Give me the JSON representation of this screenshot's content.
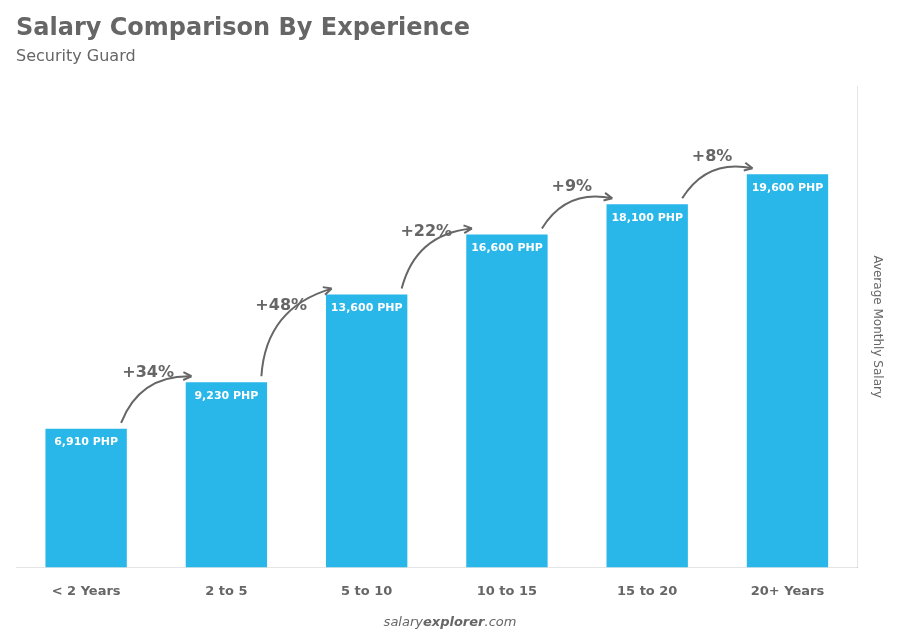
{
  "chart_data": {
    "type": "bar",
    "title": "Salary Comparison By Experience",
    "subtitle": "Security Guard",
    "categories": [
      "< 2 Years",
      "2 to 5",
      "5 to 10",
      "10 to 15",
      "15 to 20",
      "20+ Years"
    ],
    "values": [
      6910,
      9230,
      13600,
      16600,
      18100,
      19600
    ],
    "value_labels": [
      "6,910 PHP",
      "9,230 PHP",
      "13,600 PHP",
      "16,600 PHP",
      "18,100 PHP",
      "19,600 PHP"
    ],
    "data_labels": true,
    "annotations": [
      "+34%",
      "+48%",
      "+22%",
      "+9%",
      "+8%"
    ],
    "watermark": [
      "salary",
      "explorer",
      ".com"
    ],
    "ylabel": "Average Monthly Salary",
    "ylim": [
      0,
      24000
    ],
    "color": "#29b6e8",
    "grid": false,
    "tick_labels": "x"
  }
}
